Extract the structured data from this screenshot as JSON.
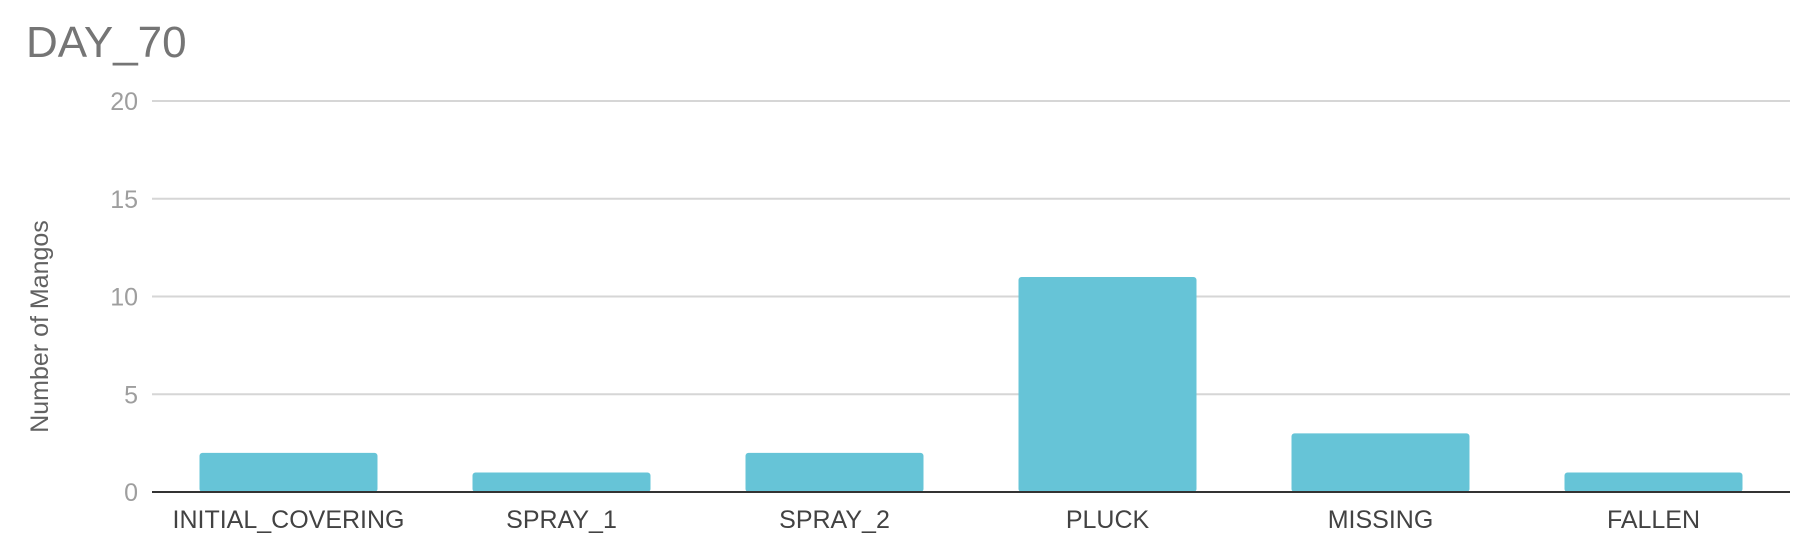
{
  "chart_data": {
    "type": "bar",
    "title": "DAY_70",
    "xlabel": "",
    "ylabel": "Number of Mangos",
    "categories": [
      "INITIAL_COVERING",
      "SPRAY_1",
      "SPRAY_2",
      "PLUCK",
      "MISSING",
      "FALLEN"
    ],
    "values": [
      2,
      1,
      2,
      11,
      3,
      1
    ],
    "ylim": [
      0,
      20
    ],
    "yticks": [
      "0",
      "5",
      "10",
      "15",
      "20"
    ],
    "grid": true,
    "legend": "none",
    "colors": {
      "bar": "#66c4d7",
      "gridline": "#d6d6d6",
      "baseline": "#333333"
    }
  }
}
